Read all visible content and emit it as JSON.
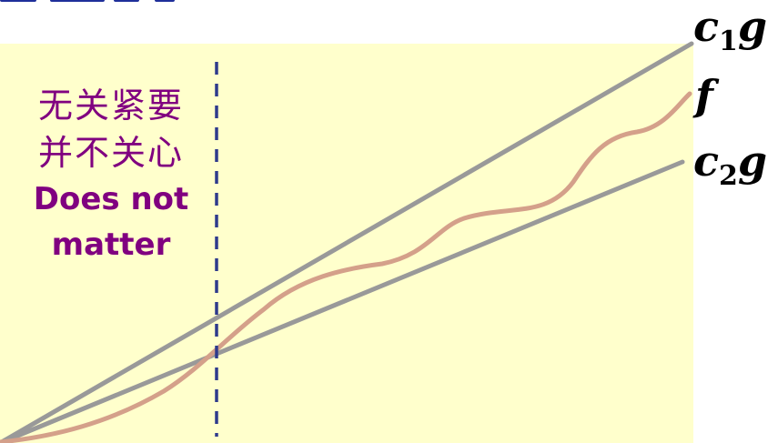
{
  "annotation": {
    "zh_line1": "无关紧要",
    "zh_line2": "并不关心",
    "en_line1": "Does not",
    "en_line2": "matter"
  },
  "labels": {
    "c1g": {
      "prefix": "c",
      "sub": "1",
      "suffix": "g"
    },
    "f": "f",
    "c2g": {
      "prefix": "c",
      "sub": "2",
      "suffix": "g"
    }
  },
  "colors": {
    "background": "#ffffcc",
    "line_gray": "#999999",
    "curve_f": "#d4a08a",
    "dashed_line": "#2e3a8c",
    "annotation_text": "#800080"
  }
}
